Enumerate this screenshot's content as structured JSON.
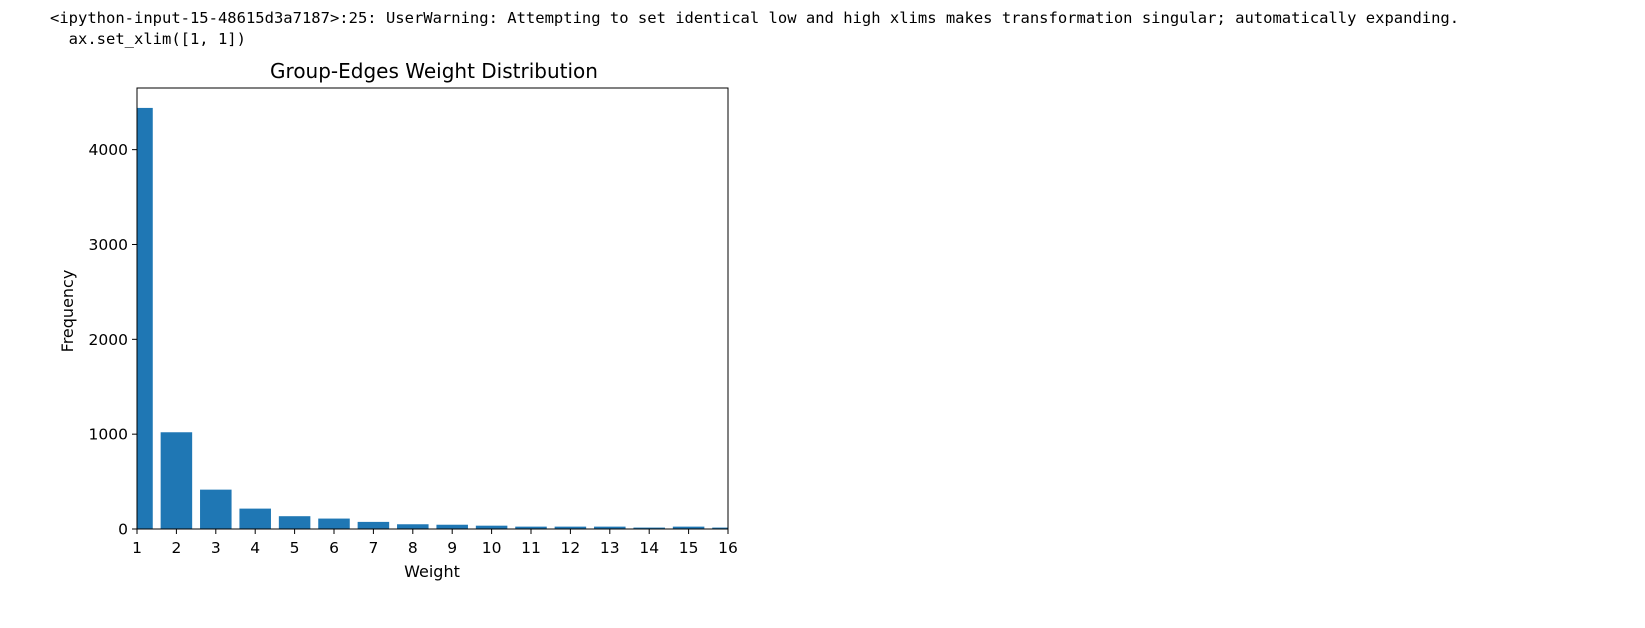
{
  "output": {
    "warning_line1": "<ipython-input-15-48615d3a7187>:25: UserWarning: Attempting to set identical low and high xlims makes transformation singular; automatically expanding.",
    "warning_line2": "  ax.set_xlim([1, 1])"
  },
  "chart_data": {
    "type": "bar",
    "title": "Group-Edges Weight Distribution",
    "xlabel": "Weight",
    "ylabel": "Frequency",
    "categories": [
      "1",
      "2",
      "3",
      "4",
      "5",
      "6",
      "7",
      "8",
      "9",
      "10",
      "11",
      "12",
      "13",
      "14",
      "15",
      "16"
    ],
    "x": [
      1,
      2,
      3,
      4,
      5,
      6,
      7,
      8,
      9,
      10,
      11,
      12,
      13,
      14,
      15,
      16
    ],
    "values": [
      4440,
      1020,
      415,
      215,
      135,
      110,
      75,
      50,
      45,
      35,
      25,
      25,
      25,
      15,
      25,
      15
    ],
    "xlim": [
      1,
      16
    ],
    "ylim": [
      0,
      4650
    ],
    "yticks": [
      0,
      1000,
      2000,
      3000,
      4000
    ],
    "ytick_labels": [
      "0",
      "1000",
      "2000",
      "3000",
      "4000"
    ],
    "xticks": [
      1,
      2,
      3,
      4,
      5,
      6,
      7,
      8,
      9,
      10,
      11,
      12,
      13,
      14,
      15,
      16
    ],
    "xtick_labels": [
      "1",
      "2",
      "3",
      "4",
      "5",
      "6",
      "7",
      "8",
      "9",
      "10",
      "11",
      "12",
      "13",
      "14",
      "15",
      "16"
    ],
    "bar_width": 0.8,
    "bar_color": "#1f77b4",
    "grid": false,
    "legend": false
  }
}
